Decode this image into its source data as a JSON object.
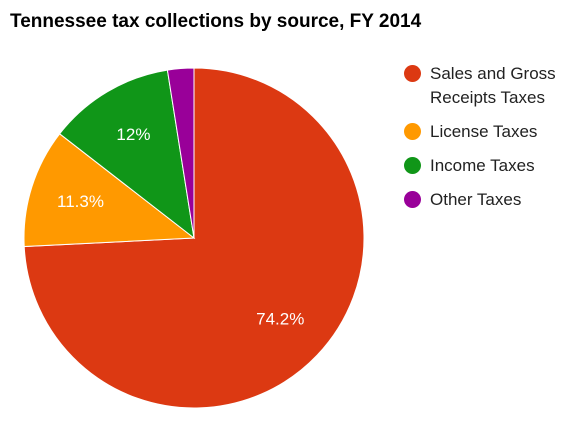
{
  "chart_data": {
    "type": "pie",
    "title": "Tennessee tax collections by source, FY 2014",
    "categories": [
      "Sales and Gross Receipts Taxes",
      "License Taxes",
      "Income Taxes",
      "Other Taxes"
    ],
    "values": [
      74.2,
      11.3,
      12,
      2.5
    ],
    "value_labels": [
      "74.2%",
      "11.3%",
      "12%",
      null
    ],
    "colors": [
      "#dc3912",
      "#ff9900",
      "#109618",
      "#990099"
    ]
  }
}
